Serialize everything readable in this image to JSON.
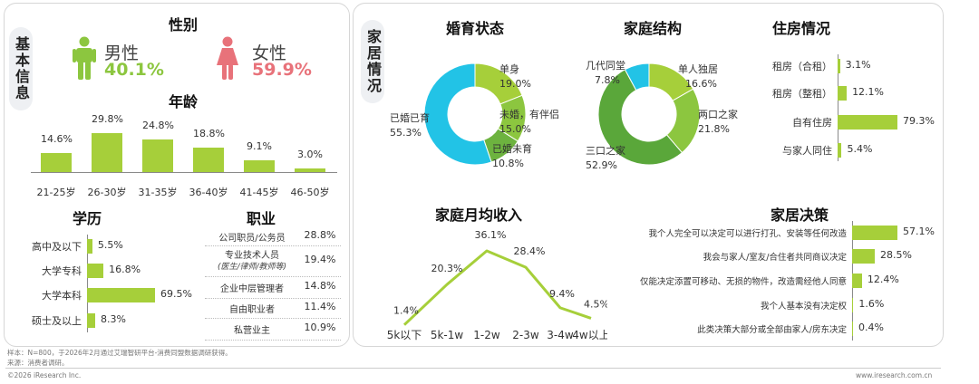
{
  "left_tab": "基本信息",
  "right_tab": "家居情况",
  "gender": {
    "title": "性别",
    "male_label": "男性",
    "male_value": "40.1%",
    "female_label": "女性",
    "female_value": "59.9%",
    "male_color": "#8cc63f",
    "female_color": "#e8727a"
  },
  "age": {
    "title": "年龄",
    "categories": [
      "21-25岁",
      "26-30岁",
      "31-35岁",
      "36-40岁",
      "41-45岁",
      "46-50岁"
    ],
    "values": [
      14.6,
      29.8,
      24.8,
      18.8,
      9.1,
      3.0
    ],
    "labels": [
      "14.6%",
      "29.8%",
      "24.8%",
      "18.8%",
      "9.1%",
      "3.0%"
    ]
  },
  "education": {
    "title": "学历",
    "categories": [
      "高中及以下",
      "大学专科",
      "大学本科",
      "硕士及以上"
    ],
    "values": [
      5.5,
      16.8,
      69.5,
      8.3
    ],
    "labels": [
      "5.5%",
      "16.8%",
      "69.5%",
      "8.3%"
    ]
  },
  "occupation": {
    "title": "职业",
    "rows": [
      {
        "name": "公司职员/公务员",
        "sub": "",
        "value": "28.8%"
      },
      {
        "name": "专业技术人员",
        "sub": "(医生/律师/教师等)",
        "value": "19.4%"
      },
      {
        "name": "企业中层管理者",
        "sub": "",
        "value": "14.8%"
      },
      {
        "name": "自由职业者",
        "sub": "",
        "value": "11.4%"
      },
      {
        "name": "私营业主",
        "sub": "",
        "value": "10.9%"
      }
    ]
  },
  "chart_data": [
    {
      "type": "bar",
      "title": "年龄",
      "categories": [
        "21-25岁",
        "26-30岁",
        "31-35岁",
        "36-40岁",
        "41-45岁",
        "46-50岁"
      ],
      "values": [
        14.6,
        29.8,
        24.8,
        18.8,
        9.1,
        3.0
      ]
    },
    {
      "type": "bar",
      "title": "学历",
      "categories": [
        "高中及以下",
        "大学专科",
        "大学本科",
        "硕士及以上"
      ],
      "values": [
        5.5,
        16.8,
        69.5,
        8.3
      ]
    },
    {
      "type": "table",
      "title": "职业",
      "categories": [
        "公司职员/公务员",
        "专业技术人员",
        "企业中层管理者",
        "自由职业者",
        "私营业主"
      ],
      "values": [
        28.8,
        19.4,
        14.8,
        11.4,
        10.9
      ]
    },
    {
      "type": "pie",
      "title": "婚育状态",
      "categories": [
        "单身",
        "未婚，有伴侣",
        "已婚未育",
        "已婚已育"
      ],
      "values": [
        19.0,
        15.0,
        10.8,
        55.3
      ]
    },
    {
      "type": "pie",
      "title": "家庭结构",
      "categories": [
        "单人独居",
        "两口之家",
        "三口之家",
        "几代同堂"
      ],
      "values": [
        16.6,
        21.8,
        52.9,
        7.8
      ]
    },
    {
      "type": "bar",
      "title": "住房情况",
      "categories": [
        "租房（合租）",
        "租房（整租）",
        "自有住房",
        "与家人同住"
      ],
      "values": [
        3.1,
        12.1,
        79.3,
        5.4
      ]
    },
    {
      "type": "line",
      "title": "家庭月均收入",
      "categories": [
        "5k以下",
        "5k-1w",
        "1-2w",
        "2-3w",
        "3-4w",
        "4w以上"
      ],
      "values": [
        1.4,
        20.3,
        36.1,
        28.4,
        9.4,
        4.5
      ]
    },
    {
      "type": "bar",
      "title": "家居决策",
      "categories": [
        "我个人完全可以决定可以进行打孔、安装等任何改造",
        "我会与家人/室友/合住者共同商议决定",
        "仅能决定添置可移动、无损的物件，改造需经他人同意",
        "我个人基本没有决定权",
        "此类决策大部分或全部由家人/房东决定"
      ],
      "values": [
        57.1,
        28.5,
        12.4,
        1.6,
        0.4
      ]
    }
  ],
  "marital": {
    "title": "婚育状态",
    "colors": [
      "#a6cf3a",
      "#8cc63f",
      "#6db33f",
      "#22c3e6"
    ],
    "labels": [
      {
        "name": "单身",
        "value": "19.0%"
      },
      {
        "name": "未婚，有伴侣",
        "value": "15.0%"
      },
      {
        "name": "已婚未育",
        "value": "10.8%"
      },
      {
        "name": "已婚已育",
        "value": "55.3%"
      }
    ]
  },
  "family": {
    "title": "家庭结构",
    "colors": [
      "#a6cf3a",
      "#8cc63f",
      "#5aa73a",
      "#22c3e6"
    ],
    "labels": [
      {
        "name": "单人独居",
        "value": "16.6%"
      },
      {
        "name": "两口之家",
        "value": "21.8%"
      },
      {
        "name": "三口之家",
        "value": "52.9%"
      },
      {
        "name": "几代同堂",
        "value": "7.8%"
      }
    ]
  },
  "housing": {
    "title": "住房情况",
    "categories": [
      "租房（合租）",
      "租房（整租）",
      "自有住房",
      "与家人同住"
    ],
    "values": [
      3.1,
      12.1,
      79.3,
      5.4
    ],
    "labels": [
      "3.1%",
      "12.1%",
      "79.3%",
      "5.4%"
    ]
  },
  "income": {
    "title": "家庭月均收入",
    "categories": [
      "5k以下",
      "5k-1w",
      "1-2w",
      "2-3w",
      "3-4w",
      "4w以上"
    ],
    "values": [
      1.4,
      20.3,
      36.1,
      28.4,
      9.4,
      4.5
    ],
    "labels": [
      "1.4%",
      "20.3%",
      "36.1%",
      "28.4%",
      "9.4%",
      "4.5%"
    ]
  },
  "decision": {
    "title": "家居决策",
    "categories": [
      "我个人完全可以决定可以进行打孔、安装等任何改造",
      "我会与家人/室友/合住者共同商议决定",
      "仅能决定添置可移动、无损的物件，改造需经他人同意",
      "我个人基本没有决定权",
      "此类决策大部分或全部由家人/房东决定"
    ],
    "values": [
      57.1,
      28.5,
      12.4,
      1.6,
      0.4
    ],
    "labels": [
      "57.1%",
      "28.5%",
      "12.4%",
      "1.6%",
      "0.4%"
    ]
  },
  "footer": {
    "note1": "样本：N=800，于2026年2月通过艾瑞智研平台-消费同盟数据调研获得。",
    "note2": "来源：消费者调研。",
    "copyright": "©2026 iResearch Inc.",
    "site": "www.iresearch.com.cn"
  },
  "bar_color": "#a6cf3a"
}
